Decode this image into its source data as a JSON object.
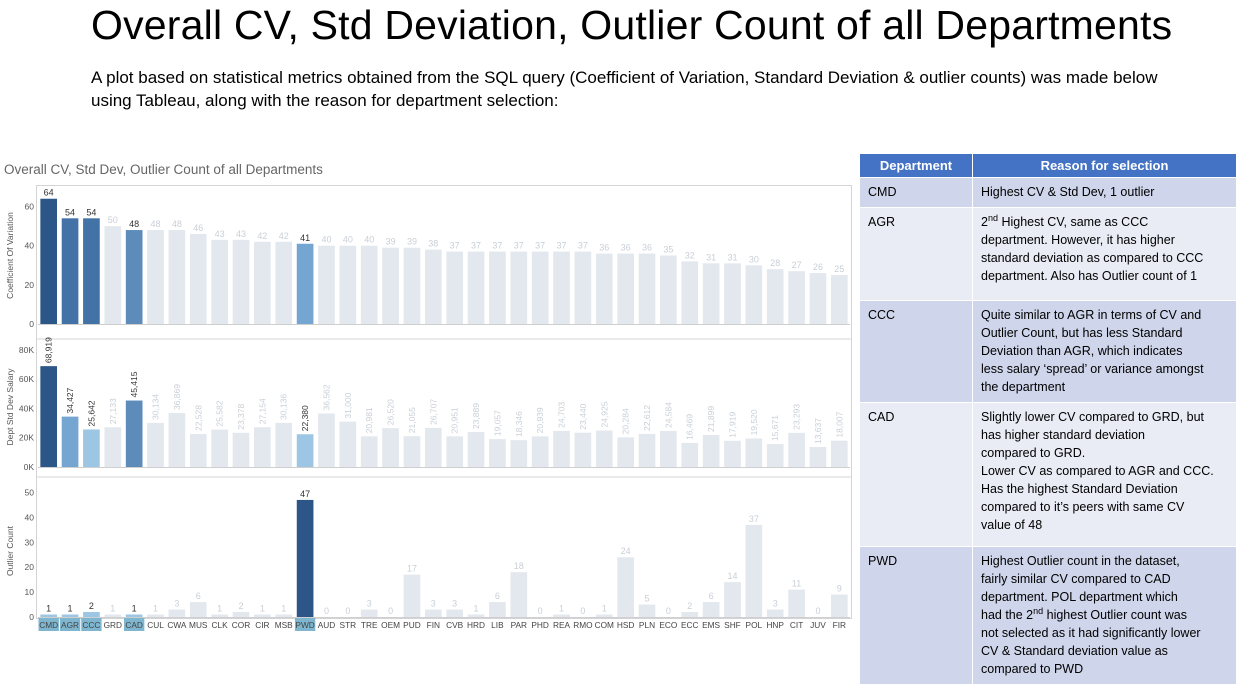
{
  "page": {
    "title": "Overall CV, Std Deviation, Outlier Count of all Departments",
    "intro": "A plot based on statistical metrics obtained from the SQL query (Coefficient of Variation, Standard Deviation & outlier counts) was made below using Tableau, along with the reason for department selection:"
  },
  "chart_data": {
    "type": "bar",
    "title": "Overall CV, Std Dev, Outlier Count of all Departments",
    "categories": [
      "CMD",
      "AGR",
      "CCC",
      "GRD",
      "CAD",
      "CUL",
      "CWA",
      "MUS",
      "CLK",
      "COR",
      "CIR",
      "MSB",
      "PWD",
      "AUD",
      "STR",
      "TRE",
      "OEM",
      "PUD",
      "FIN",
      "CVB",
      "HRD",
      "LIB",
      "PAR",
      "PHD",
      "REA",
      "RMO",
      "COM",
      "HSD",
      "PLN",
      "ECO",
      "ECC",
      "EMS",
      "SHF",
      "POL",
      "HNP",
      "CIT",
      "JUV",
      "FIR"
    ],
    "highlighted": [
      "CMD",
      "AGR",
      "CCC",
      "CAD",
      "PWD"
    ],
    "series": [
      {
        "name": "Coefficient Of Variation",
        "ylabel": "Coefficient Of Variation",
        "ylim": [
          0,
          70
        ],
        "ticks": [
          "0",
          "20",
          "40",
          "60"
        ],
        "values": [
          64,
          54,
          54,
          50,
          48,
          48,
          48,
          46,
          43,
          43,
          42,
          42,
          41,
          40,
          40,
          40,
          39,
          39,
          38,
          37,
          37,
          37,
          37,
          37,
          37,
          37,
          36,
          36,
          36,
          35,
          32,
          31,
          31,
          30,
          28,
          27,
          26,
          25
        ],
        "labels": [
          "64",
          "54",
          "54",
          "50",
          "48",
          "48",
          "48",
          "46",
          "43",
          "43",
          "42",
          "42",
          "41",
          "40",
          "40",
          "40",
          "39",
          "39",
          "38",
          "37",
          "37",
          "37",
          "37",
          "37",
          "37",
          "37",
          "36",
          "36",
          "36",
          "35",
          "32",
          "31",
          "31",
          "30",
          "28",
          "27",
          "26",
          "25"
        ]
      },
      {
        "name": "Dept Std Dev Salary",
        "ylabel": "Dept Std Dev Salary",
        "ylim": [
          0,
          82000
        ],
        "ticks": [
          "0K",
          "20K",
          "40K",
          "60K",
          "80K"
        ],
        "values": [
          68919,
          34427,
          25642,
          27133,
          45415,
          30134,
          36869,
          22528,
          25582,
          23378,
          27154,
          30136,
          22380,
          36562,
          31000,
          20981,
          26520,
          21055,
          26707,
          20951,
          23889,
          19057,
          18346,
          20939,
          24703,
          23440,
          24925,
          20284,
          22612,
          24584,
          16469,
          21899,
          17919,
          19520,
          15671,
          23293,
          13637,
          18007
        ],
        "labels": [
          "68,919",
          "34,427",
          "25,642",
          "27,133",
          "45,415",
          "30,134",
          "36,869",
          "22,528",
          "25,582",
          "23,378",
          "27,154",
          "30,136",
          "22,380",
          "36,562",
          "31,000",
          "20,981",
          "26,520",
          "21,055",
          "26,707",
          "20,951",
          "23,889",
          "19,057",
          "18,346",
          "20,939",
          "24,703",
          "23,440",
          "24,925",
          "20,284",
          "22,612",
          "24,584",
          "16,469",
          "21,899",
          "17,919",
          "19,520",
          "15,671",
          "23,293",
          "13,637",
          "18,007"
        ]
      },
      {
        "name": "Outlier Count",
        "ylabel": "Outlier Count",
        "ylim": [
          0,
          53
        ],
        "ticks": [
          "0",
          "10",
          "20",
          "30",
          "40",
          "50"
        ],
        "values": [
          1,
          1,
          2,
          1,
          1,
          1,
          3,
          6,
          1,
          2,
          1,
          1,
          47,
          0,
          0,
          3,
          0,
          17,
          3,
          3,
          1,
          6,
          18,
          0,
          1,
          0,
          1,
          24,
          5,
          0,
          2,
          6,
          14,
          37,
          3,
          11,
          0,
          9
        ],
        "labels": [
          "1",
          "1",
          "2",
          "1",
          "1",
          "1",
          "3",
          "6",
          "1",
          "2",
          "1",
          "1",
          "47",
          "0",
          "0",
          "3",
          "0",
          "17",
          "3",
          "3",
          "1",
          "6",
          "18",
          "0",
          "1",
          "0",
          "1",
          "24",
          "5",
          "0",
          "2",
          "6",
          "14",
          "37",
          "3",
          "11",
          "0",
          "9"
        ]
      }
    ],
    "colors": {
      "dark": "#2c5687",
      "mid_dark": "#4272a6",
      "mid": "#5d8cbb",
      "light_blue": "#74a6d1",
      "pale_blue": "#9cc6e4",
      "muted": "#e3e8ee",
      "muted_label": "#c9cfd6",
      "label": "#333333",
      "highlight_tick_bg": "#7eb6cf"
    }
  },
  "table": {
    "headers": [
      "Department",
      "Reason for selection"
    ],
    "rows": [
      {
        "dept": "CMD",
        "lines": [
          "Highest CV & Std Dev, 1 outlier"
        ]
      },
      {
        "dept": "AGR",
        "lines": [
          "2|nd| Highest CV, same as CCC",
          "department. However, it has higher",
          "standard deviation as compared to CCC",
          "department. Also has Outlier count of 1"
        ]
      },
      {
        "dept": "CCC",
        "lines": [
          "Quite similar to AGR in terms of CV and",
          "Outlier Count, but has less Standard",
          "Deviation than AGR, which indicates",
          "less salary ‘spread’ or variance amongst",
          "the department"
        ]
      },
      {
        "dept": "CAD",
        "lines": [
          "Slightly lower CV compared to GRD, but",
          "has higher standard deviation",
          "compared to GRD.",
          "Lower CV as compared to AGR and CCC.",
          "Has the highest Standard Deviation",
          "compared to it’s peers with same CV",
          "value of 48"
        ]
      },
      {
        "dept": "PWD",
        "lines": [
          "Highest Outlier count in the dataset,",
          "fairly similar CV compared to CAD",
          "department. POL department which",
          "had the 2|nd| highest Outlier count was",
          "not selected as it had significantly lower",
          "CV & Standard deviation value as",
          "compared to PWD"
        ]
      }
    ]
  }
}
